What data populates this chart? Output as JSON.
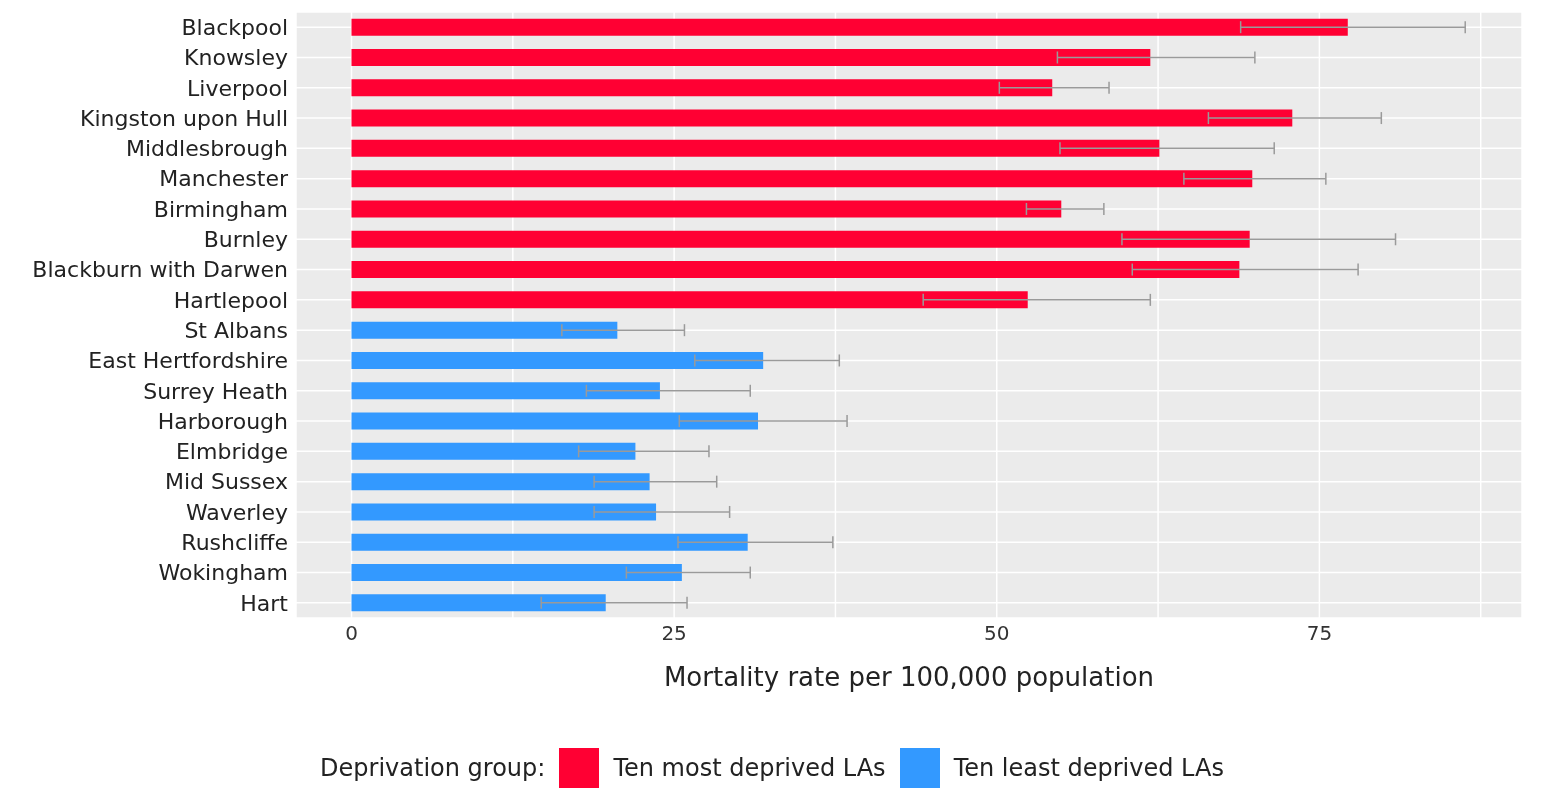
{
  "chart_data": {
    "type": "bar",
    "orientation": "horizontal",
    "stacked": true,
    "xlabel": "Mortality rate per 100,000 population",
    "legend_title": "Deprivation group:",
    "legend": "bottom",
    "grid": true,
    "categories": [
      "Blackpool",
      "Knowsley",
      "Liverpool",
      "Kingston upon Hull",
      "Middlesbrough",
      "Manchester",
      "Birmingham",
      "Burnley",
      "Blackburn with Darwen",
      "Hartlepool",
      "St Albans",
      "East Hertfordshire",
      "Surrey Heath",
      "Harborough",
      "Elmbridge",
      "Mid Sussex",
      "Waverley",
      "Rushcliffe",
      "Wokingham",
      "Hart"
    ],
    "xlim": [
      -4.3,
      90.7
    ],
    "xticks": [
      0,
      {
        "value": 12.5,
        "label": null
      },
      25,
      {
        "value": 37.5,
        "label": null
      },
      50,
      {
        "value": 62.5,
        "label": null
      },
      75,
      {
        "value": 87.5,
        "label": null
      }
    ],
    "series": [
      {
        "name": "Ten most deprived LAs",
        "color": "#ff0033",
        "values": [
          77.2,
          61.9,
          54.3,
          72.9,
          62.6,
          69.8,
          55.0,
          69.6,
          68.8,
          52.4,
          null,
          null,
          null,
          null,
          null,
          null,
          null,
          null,
          null,
          null
        ],
        "errors": [
          [
            68.9,
            86.3
          ],
          [
            54.7,
            70.0
          ],
          [
            50.2,
            58.7
          ],
          [
            66.4,
            79.8
          ],
          [
            54.9,
            71.5
          ],
          [
            64.5,
            75.5
          ],
          [
            52.3,
            58.3
          ],
          [
            59.7,
            80.9
          ],
          [
            60.5,
            78.0
          ],
          [
            44.3,
            61.9
          ],
          null,
          null,
          null,
          null,
          null,
          null,
          null,
          null,
          null,
          null
        ]
      },
      {
        "name": "Ten least deprived LAs",
        "color": "#3399ff",
        "values": [
          null,
          null,
          null,
          null,
          null,
          null,
          null,
          null,
          null,
          null,
          20.6,
          31.9,
          23.9,
          31.5,
          22.0,
          23.1,
          23.6,
          30.7,
          25.6,
          19.7
        ],
        "errors": [
          null,
          null,
          null,
          null,
          null,
          null,
          null,
          null,
          null,
          null,
          [
            16.3,
            25.8
          ],
          [
            26.6,
            37.8
          ],
          [
            18.2,
            30.9
          ],
          [
            25.4,
            38.4
          ],
          [
            17.6,
            27.7
          ],
          [
            18.8,
            28.3
          ],
          [
            18.8,
            29.3
          ],
          [
            25.3,
            37.3
          ],
          [
            21.3,
            30.9
          ],
          [
            14.7,
            26.0
          ]
        ]
      }
    ]
  }
}
